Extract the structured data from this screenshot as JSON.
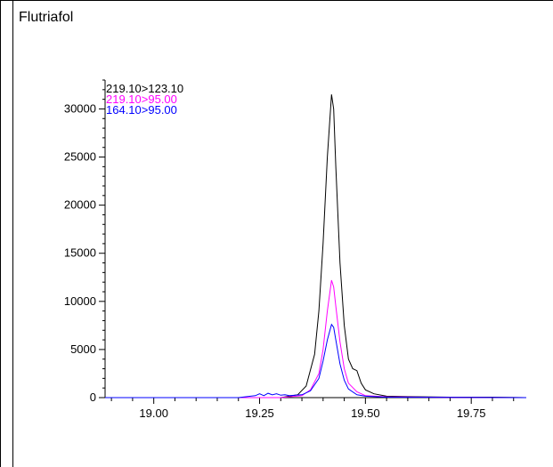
{
  "panel": {
    "title": "Flutriafol"
  },
  "chart_data": {
    "type": "line",
    "title": "Flutriafol",
    "xlabel": "",
    "ylabel": "",
    "xlim": [
      18.885,
      19.88
    ],
    "ylim": [
      0,
      33000
    ],
    "x_ticks": [
      "19.00",
      "19.25",
      "19.50",
      "19.75"
    ],
    "x_tick_values": [
      19.0,
      19.25,
      19.5,
      19.75
    ],
    "y_ticks": [
      "0",
      "5000",
      "10000",
      "15000",
      "20000",
      "25000",
      "30000"
    ],
    "y_tick_values": [
      0,
      5000,
      10000,
      15000,
      20000,
      25000,
      30000
    ],
    "legend_position": "top-left",
    "grid": false,
    "series": [
      {
        "name": "219.10>123.10",
        "color": "#000000",
        "x": [
          18.885,
          19.0,
          19.1,
          19.2,
          19.3,
          19.34,
          19.36,
          19.38,
          19.39,
          19.4,
          19.41,
          19.42,
          19.425,
          19.43,
          19.44,
          19.45,
          19.46,
          19.47,
          19.48,
          19.49,
          19.5,
          19.52,
          19.55,
          19.6,
          19.7,
          19.8,
          19.88
        ],
        "y": [
          0,
          0,
          0,
          0,
          0,
          300,
          1200,
          4500,
          9000,
          16000,
          25000,
          31500,
          30000,
          24000,
          14000,
          7500,
          4000,
          3000,
          2800,
          1500,
          800,
          400,
          150,
          100,
          50,
          50,
          0
        ]
      },
      {
        "name": "219.10>95.00",
        "color": "#ff00ff",
        "x": [
          18.885,
          19.0,
          19.1,
          19.2,
          19.3,
          19.35,
          19.37,
          19.39,
          19.4,
          19.41,
          19.42,
          19.425,
          19.43,
          19.44,
          19.45,
          19.46,
          19.48,
          19.5,
          19.55,
          19.7,
          19.88
        ],
        "y": [
          0,
          0,
          0,
          0,
          0,
          200,
          800,
          2500,
          5000,
          9000,
          12200,
          11500,
          9500,
          5800,
          3000,
          1500,
          600,
          200,
          80,
          30,
          0
        ]
      },
      {
        "name": "164.10>95.00",
        "color": "#0000ff",
        "x": [
          18.885,
          19.0,
          19.1,
          19.2,
          19.24,
          19.25,
          19.26,
          19.27,
          19.28,
          19.29,
          19.3,
          19.31,
          19.32,
          19.35,
          19.37,
          19.39,
          19.4,
          19.41,
          19.42,
          19.425,
          19.43,
          19.44,
          19.45,
          19.46,
          19.48,
          19.5,
          19.55,
          19.7,
          19.88
        ],
        "y": [
          0,
          0,
          0,
          0,
          200,
          400,
          200,
          450,
          300,
          400,
          250,
          300,
          200,
          300,
          700,
          2000,
          3800,
          6000,
          7600,
          7300,
          6000,
          3500,
          1800,
          900,
          300,
          150,
          50,
          20,
          0
        ]
      }
    ]
  }
}
